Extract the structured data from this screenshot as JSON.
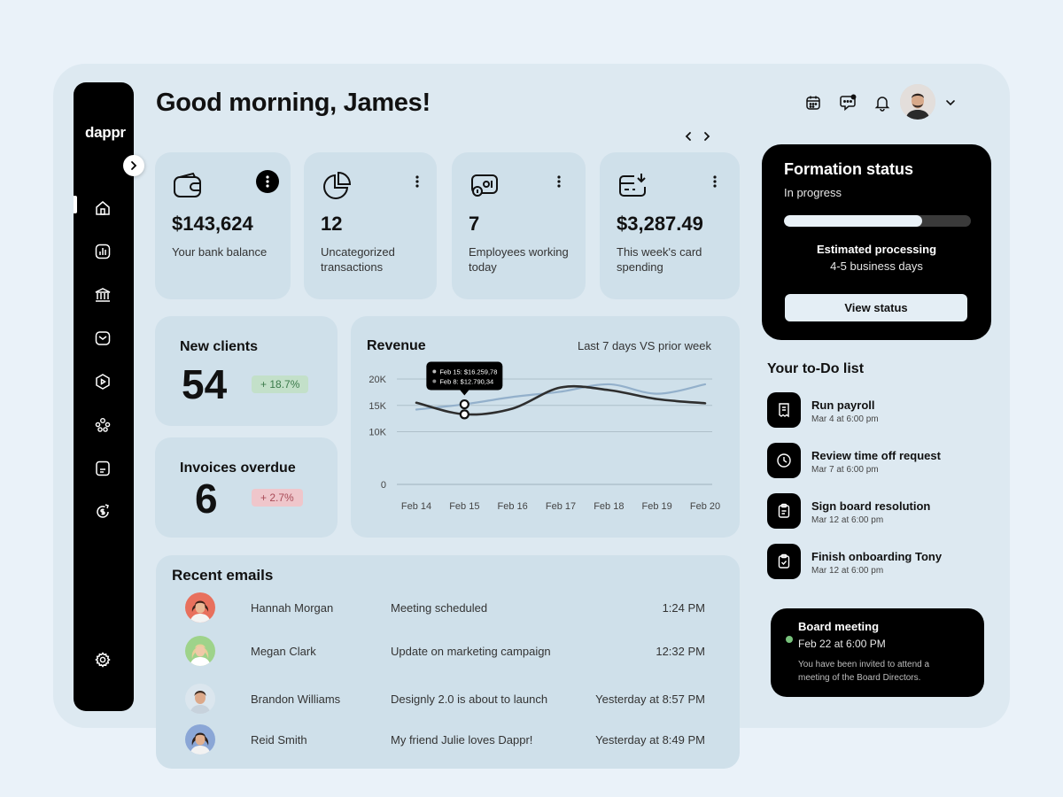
{
  "brand": "dappr",
  "greeting": "Good morning, James!",
  "stats": [
    {
      "value": "$143,624",
      "label": "Your bank balance"
    },
    {
      "value": "12",
      "label": "Uncategorized transactions"
    },
    {
      "value": "7",
      "label": "Employees working today"
    },
    {
      "value": "$3,287.49",
      "label": "This week's card spending"
    }
  ],
  "kpis": {
    "new_clients": {
      "title": "New clients",
      "value": "54",
      "change": "+ 18.7%"
    },
    "invoices": {
      "title": "Invoices overdue",
      "value": "6",
      "change": "+ 2.7%"
    }
  },
  "revenue": {
    "title": "Revenue",
    "period": "Last 7 days VS prior week"
  },
  "chart_data": {
    "type": "line",
    "categories": [
      "Feb 14",
      "Feb 15",
      "Feb 16",
      "Feb 17",
      "Feb 18",
      "Feb 19",
      "Feb 20"
    ],
    "ylim": [
      0,
      20000
    ],
    "yticks": [
      {
        "v": 0,
        "t": "0"
      },
      {
        "v": 10000,
        "t": "10K"
      },
      {
        "v": 15000,
        "t": "15K"
      },
      {
        "v": 20000,
        "t": "20K"
      }
    ],
    "grid": true,
    "series": [
      {
        "values": [
          14200,
          15200,
          16600,
          17600,
          19000,
          17200,
          19000
        ],
        "color": "#93b0cb"
      },
      {
        "values": [
          15500,
          13300,
          14400,
          18400,
          17900,
          16200,
          15400
        ],
        "color": "#2e2e2e"
      }
    ],
    "tooltip": {
      "lines": [
        "Feb 15: $16.259,78",
        "Feb 8: $12.790,34"
      ]
    }
  },
  "emails": {
    "title": "Recent emails",
    "rows": [
      {
        "name": "Hannah Morgan",
        "subject": "Meeting scheduled",
        "time": "1:24 PM"
      },
      {
        "name": "Megan Clark",
        "subject": "Update on marketing campaign",
        "time": "12:32 PM"
      },
      {
        "name": "Brandon Williams",
        "subject": "Designly 2.0 is about to launch",
        "time": "Yesterday at 8:57 PM"
      },
      {
        "name": "Reid Smith",
        "subject": "My friend Julie loves Dappr!",
        "time": "Yesterday at 8:49 PM"
      }
    ]
  },
  "formation": {
    "title": "Formation status",
    "status": "In progress",
    "progress": 0.74,
    "estimate_label": "Estimated processing",
    "estimate_value": "4-5 business days",
    "button": "View status"
  },
  "todo": {
    "title": "Your to-Do list",
    "items": [
      {
        "title": "Run payroll",
        "date": "Mar 4 at 6:00 pm"
      },
      {
        "title": "Review time off request",
        "date": "Mar 7 at 6:00 pm"
      },
      {
        "title": "Sign board resolution",
        "date": "Mar 12 at 6:00 pm"
      },
      {
        "title": "Finish onboarding Tony",
        "date": "Mar 12 at 6:00 pm"
      }
    ]
  },
  "meeting": {
    "title": "Board meeting",
    "date": "Feb 22 at 6:00 PM",
    "text": "You have been invited to attend a meeting of the Board Directors.",
    "dot_color": "#78c27c"
  }
}
